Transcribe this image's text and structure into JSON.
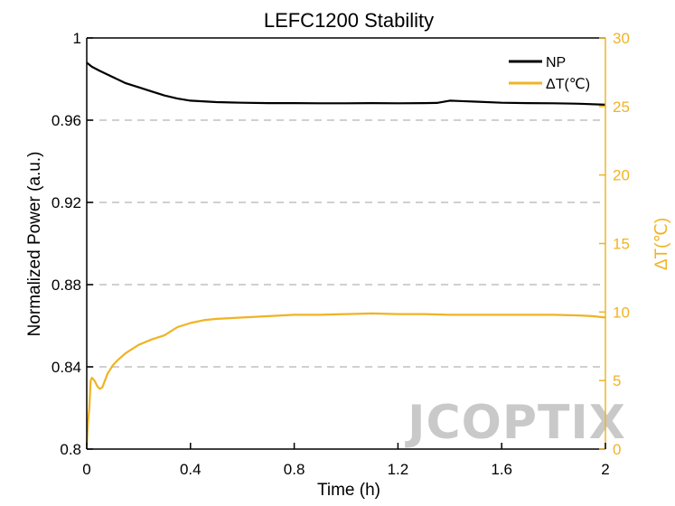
{
  "chart_data": {
    "type": "line",
    "title": "LEFC1200 Stability",
    "xlabel": "Time (h)",
    "ylabel": "Normalized Power (a.u.)",
    "y2label": "ΔT(℃)",
    "xlim": [
      0,
      2
    ],
    "ylim": [
      0.8,
      1.0
    ],
    "y2lim": [
      0,
      30
    ],
    "xticks": [
      "0",
      "0.4",
      "0.8",
      "1.2",
      "1.6",
      "2"
    ],
    "xtick_values": [
      0,
      0.4,
      0.8,
      1.2,
      1.6,
      2
    ],
    "yticks": [
      "0.8",
      "0.84",
      "0.88",
      "0.92",
      "0.96",
      "1"
    ],
    "ytick_values": [
      0.8,
      0.84,
      0.88,
      0.92,
      0.96,
      1.0
    ],
    "y2ticks": [
      "0",
      "5",
      "10",
      "15",
      "20",
      "25",
      "30"
    ],
    "y2tick_values": [
      0,
      5,
      10,
      15,
      20,
      25,
      30
    ],
    "grid": "horizontal dashed",
    "legend": "top-right",
    "series": [
      {
        "name": "NP",
        "axis": "left",
        "color": "#000000",
        "x": [
          0,
          0.02,
          0.05,
          0.1,
          0.15,
          0.2,
          0.25,
          0.3,
          0.35,
          0.4,
          0.5,
          0.6,
          0.7,
          0.8,
          0.9,
          1.0,
          1.1,
          1.2,
          1.3,
          1.35,
          1.4,
          1.5,
          1.6,
          1.7,
          1.8,
          1.9,
          2.0
        ],
        "values": [
          0.988,
          0.986,
          0.984,
          0.981,
          0.978,
          0.976,
          0.974,
          0.972,
          0.9705,
          0.9695,
          0.9688,
          0.9685,
          0.9683,
          0.9683,
          0.9682,
          0.9682,
          0.9683,
          0.9682,
          0.9683,
          0.9684,
          0.9695,
          0.969,
          0.9685,
          0.9683,
          0.9682,
          0.968,
          0.9675
        ]
      },
      {
        "name": "ΔT(℃)",
        "axis": "right",
        "color": "#f0b323",
        "x": [
          0,
          0.005,
          0.01,
          0.015,
          0.02,
          0.03,
          0.04,
          0.05,
          0.06,
          0.07,
          0.08,
          0.1,
          0.12,
          0.15,
          0.2,
          0.25,
          0.3,
          0.35,
          0.4,
          0.45,
          0.5,
          0.6,
          0.7,
          0.8,
          0.9,
          1.0,
          1.1,
          1.2,
          1.3,
          1.4,
          1.5,
          1.6,
          1.7,
          1.8,
          1.9,
          1.95,
          2.0
        ],
        "values": [
          0.3,
          2.0,
          3.0,
          5.0,
          5.2,
          5.0,
          4.6,
          4.4,
          4.5,
          5.0,
          5.5,
          6.1,
          6.5,
          7.0,
          7.6,
          8.0,
          8.3,
          8.9,
          9.2,
          9.4,
          9.5,
          9.6,
          9.7,
          9.8,
          9.8,
          9.85,
          9.9,
          9.85,
          9.85,
          9.8,
          9.8,
          9.8,
          9.8,
          9.8,
          9.75,
          9.7,
          9.6
        ]
      }
    ]
  },
  "watermark": "JCOPTIX"
}
